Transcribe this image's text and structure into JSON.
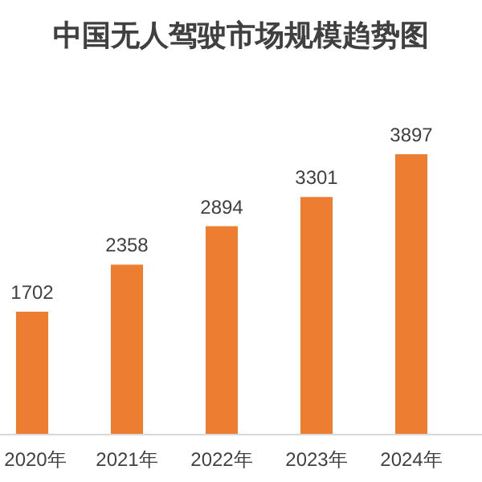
{
  "chart_data": {
    "type": "bar",
    "title": "中国无人驾驶市场规模趋势图",
    "categories": [
      "2020年",
      "2021年",
      "2022年",
      "2023年",
      "2024年"
    ],
    "values": [
      1702,
      2358,
      2894,
      3301,
      3897
    ],
    "color": "#ed7d31",
    "data_labels": true
  }
}
